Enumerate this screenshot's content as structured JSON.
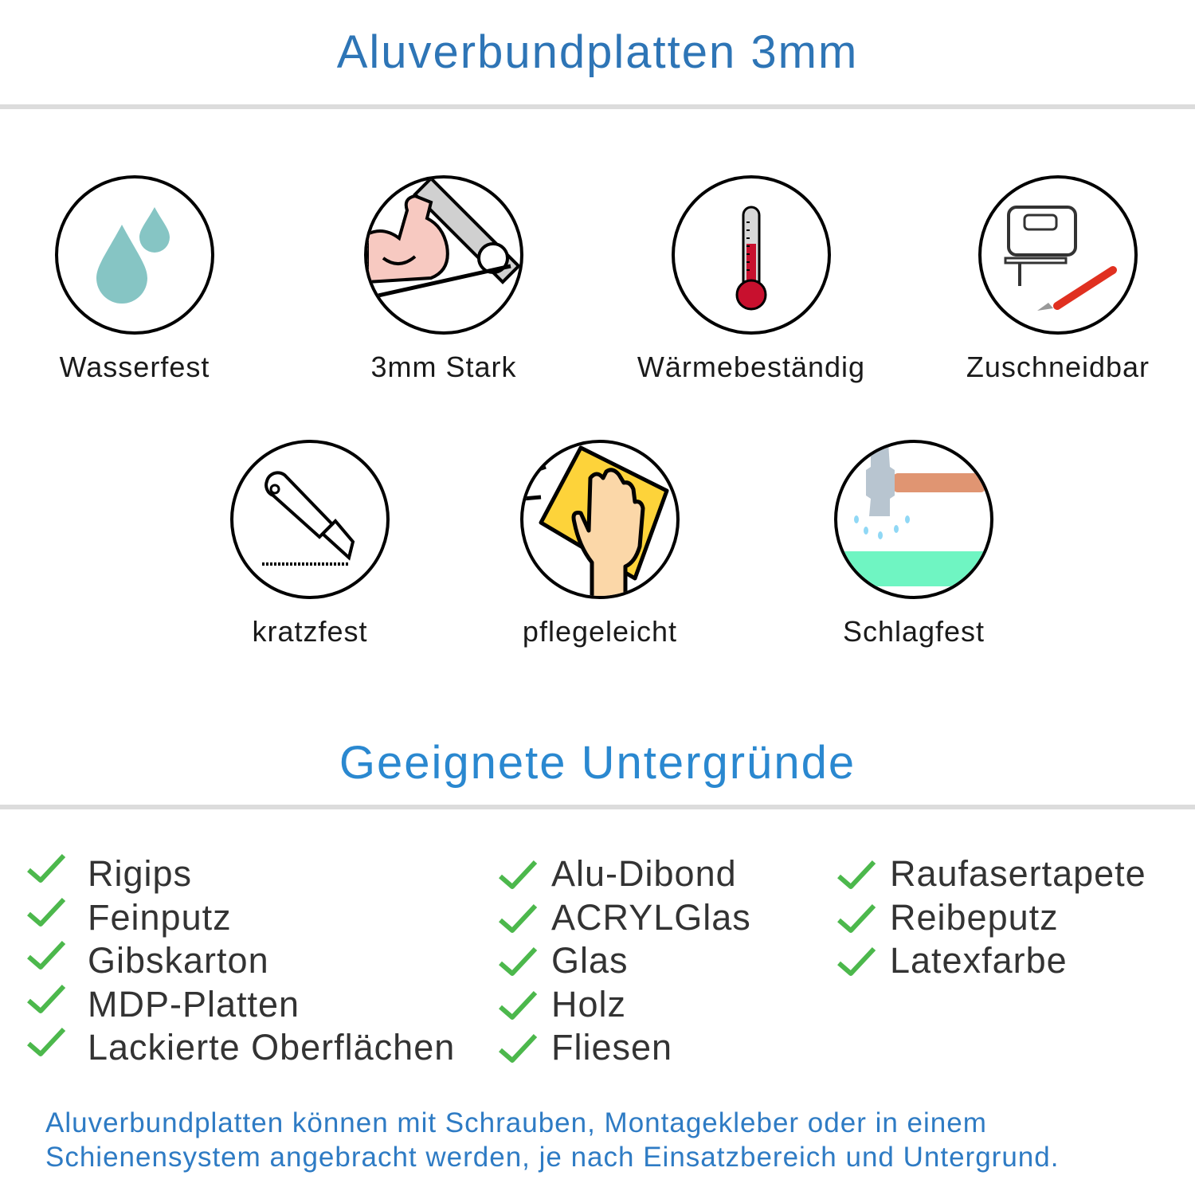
{
  "header": {
    "title": "Aluverbundplatten 3mm"
  },
  "features_row1": [
    {
      "label": "Wasserfest",
      "icon": "water-drops-icon"
    },
    {
      "label": "3mm Stark",
      "icon": "strong-arm-icon"
    },
    {
      "label": "Wärmebeständig",
      "icon": "thermometer-icon"
    },
    {
      "label": "Zuschneidbar",
      "icon": "jigsaw-knife-icon"
    }
  ],
  "features_row2": [
    {
      "label": "kratzfest",
      "icon": "cutter-knife-icon"
    },
    {
      "label": "pflegeleicht",
      "icon": "hand-cloth-icon"
    },
    {
      "label": "Schlagfest",
      "icon": "hammer-icon"
    }
  ],
  "surfaces": {
    "title": "Geeignete Untergründe",
    "col1": [
      "Rigips",
      "Feinputz",
      "Gibskarton",
      "MDP-Platten",
      "Lackierte Oberflächen"
    ],
    "col2": [
      "Alu-Dibond",
      "ACRYLGlas",
      "Glas",
      "Holz",
      "Fliesen"
    ],
    "col3": [
      "Raufasertapete",
      "Reibeputz",
      "Latexfarbe"
    ]
  },
  "footer": {
    "line1": "Aluverbundplatten können mit Schrauben, Montagekleber oder in einem",
    "line2": "Schienensystem angebracht werden, je nach Einsatzbereich und Untergrund."
  },
  "colors": {
    "title": "#2e75b6",
    "subtitle": "#2a88d0",
    "check": "#4cb84c",
    "footer": "#2e7bc4"
  }
}
